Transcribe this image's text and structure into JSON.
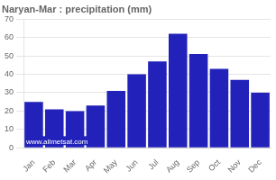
{
  "chart_data": {
    "type": "bar",
    "title": "Naryan-Mar : precipitation (mm)",
    "categories": [
      "Jan",
      "Feb",
      "Mar",
      "Apr",
      "May",
      "Jun",
      "Jul",
      "Aug",
      "Sep",
      "Oct",
      "Nov",
      "Dec"
    ],
    "values": [
      25,
      21,
      20,
      23,
      31,
      40,
      47,
      62,
      51,
      43,
      37,
      30
    ],
    "color": "#2222bb",
    "ylim": [
      0,
      70
    ],
    "yticks": [
      0,
      10,
      20,
      30,
      40,
      50,
      60,
      70
    ],
    "grid": true,
    "annotations": [
      "www.allmetsat.com"
    ]
  }
}
